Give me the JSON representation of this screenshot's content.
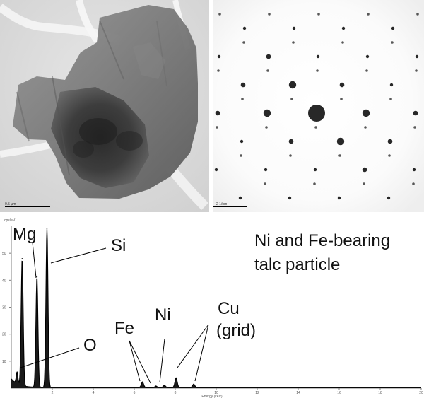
{
  "figure": {
    "tem_panel": {
      "scale_label": "0.5 μm"
    },
    "saed_panel": {
      "scale_label": "2 1/nm"
    },
    "eds_panel": {
      "title_lines": [
        "Ni and Fe-bearing",
        "talc particle"
      ],
      "annotations": {
        "mg": "Mg",
        "si": "Si",
        "o": "O",
        "fe": "Fe",
        "ni": "Ni",
        "cu": "Cu",
        "grid": "(grid)"
      }
    }
  },
  "chart_data": {
    "type": "line",
    "xlabel": "Energy (keV)",
    "ylabel": "cps/eV",
    "xlim": [
      0,
      20
    ],
    "ylim": [
      0,
      60
    ],
    "xticks": [
      "2",
      "4",
      "6",
      "8",
      "10",
      "12",
      "14",
      "16",
      "18",
      "20"
    ],
    "yticks": [
      "10",
      "20",
      "30",
      "40",
      "50"
    ],
    "grid": false,
    "series": [
      {
        "name": "",
        "line_color": "#000000",
        "fill_color": "#111111",
        "peaks": [
          {
            "energy": 0.28,
            "height": 4.2,
            "width": 0.06
          },
          {
            "energy": 0.53,
            "height": 47.0,
            "width": 0.07
          },
          {
            "energy": 1.25,
            "height": 41.0,
            "width": 0.07
          },
          {
            "energy": 1.74,
            "height": 59.0,
            "width": 0.07
          },
          {
            "energy": 6.4,
            "height": 2.0,
            "width": 0.08
          },
          {
            "energy": 7.06,
            "height": 0.5,
            "width": 0.08
          },
          {
            "energy": 7.47,
            "height": 0.8,
            "width": 0.08
          },
          {
            "energy": 8.04,
            "height": 3.5,
            "width": 0.08
          },
          {
            "energy": 8.9,
            "height": 1.2,
            "width": 0.08
          }
        ]
      }
    ]
  }
}
